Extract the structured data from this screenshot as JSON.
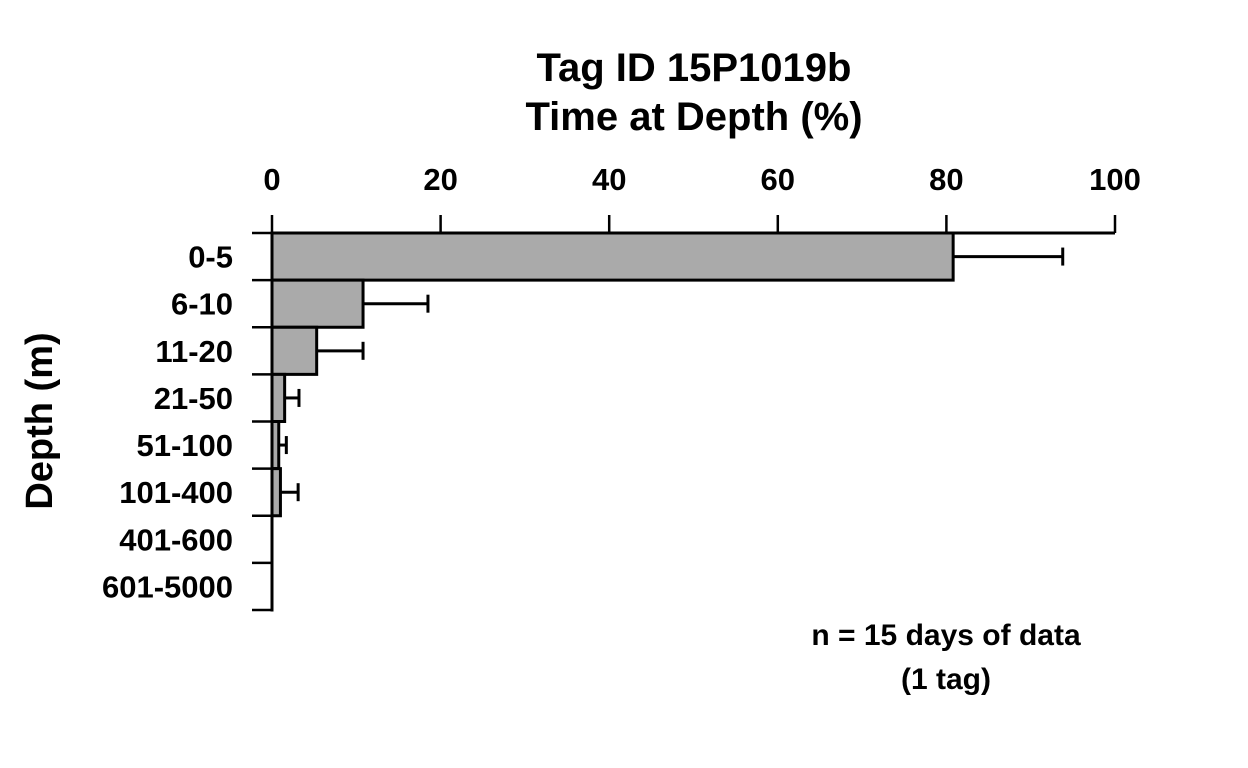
{
  "chart_data": {
    "type": "bar",
    "orientation": "horizontal",
    "title_lines": {
      "line1": "Tag ID 15P1019b",
      "line2": "Time at Depth (%)"
    },
    "xlabel": "Time at Depth (%)",
    "ylabel": "Depth (m)",
    "categories": [
      "0-5",
      "6-10",
      "11-20",
      "21-50",
      "51-100",
      "101-400",
      "401-600",
      "601-5000"
    ],
    "series": [
      {
        "name": "Time at Depth (%)",
        "values": [
          80.8,
          10.8,
          5.3,
          1.5,
          0.8,
          1.0,
          0,
          0
        ],
        "errors_plus": [
          13.0,
          7.7,
          5.5,
          1.7,
          0.9,
          2.1,
          0,
          0
        ]
      }
    ],
    "x_ticks": [
      0,
      20,
      40,
      60,
      80,
      100
    ],
    "xlim": [
      0,
      100
    ],
    "grid": false,
    "legend": false,
    "annotation_lines": {
      "line1": "n = 15 days of data",
      "line2": "(1 tag)"
    },
    "bar_color": "#aaaaaa",
    "bar_edge_color": "#000000",
    "axis_color": "#000000",
    "background_color": "#ffffff"
  }
}
